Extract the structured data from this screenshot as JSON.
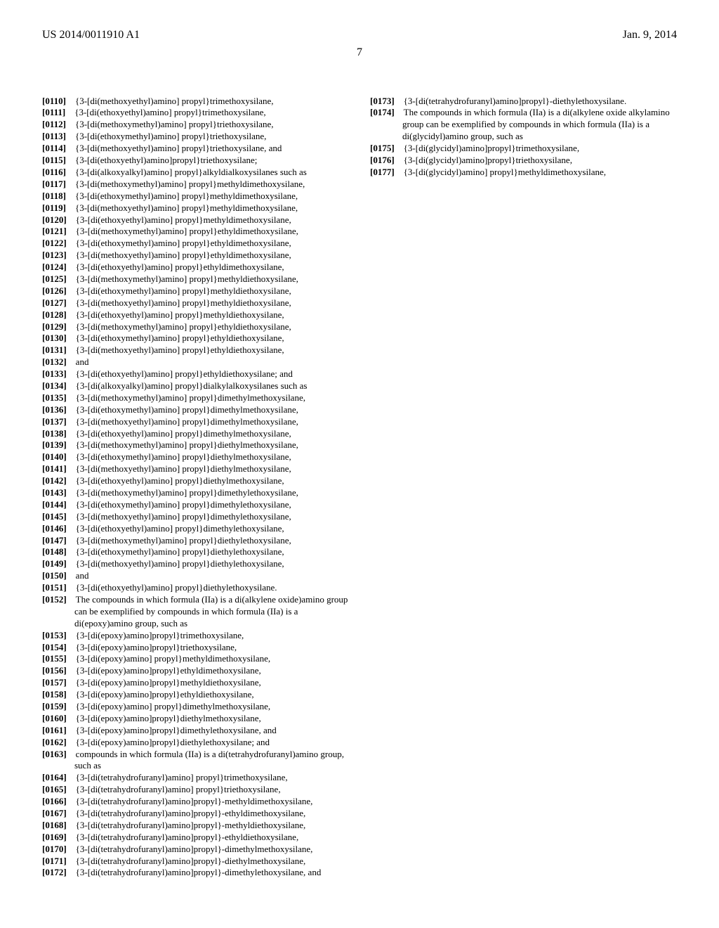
{
  "header": {
    "patent_number": "US 2014/0011910 A1",
    "date": "Jan. 9, 2014",
    "page": "7"
  },
  "entries": [
    {
      "n": "[0110]",
      "t": "{3-[di(methoxyethyl)amino] propyl}trimethoxysilane,"
    },
    {
      "n": "[0111]",
      "t": "{3-[di(ethoxyethyl)amino] propyl}trimethoxysilane,"
    },
    {
      "n": "[0112]",
      "t": "{3-[di(methoxymethyl)amino] propyl}triethoxysilane,"
    },
    {
      "n": "[0113]",
      "t": "{3-[di(ethoxymethyl)amino] propyl}triethoxysilane,"
    },
    {
      "n": "[0114]",
      "t": "{3-[di(methoxyethyl)amino] propyl}triethoxysilane, and"
    },
    {
      "n": "[0115]",
      "t": "{3-[di(ethoxyethyl)amino]propyl}triethoxysilane;"
    },
    {
      "n": "[0116]",
      "t": "{3-[di(alkoxyalkyl)amino] propyl}alkyldialkoxysilanes such as"
    },
    {
      "n": "[0117]",
      "t": "{3-[di(methoxymethyl)amino] propyl}methyldimethoxysilane,"
    },
    {
      "n": "[0118]",
      "t": "{3-[di(ethoxymethyl)amino] propyl}methyldimethoxysilane,"
    },
    {
      "n": "[0119]",
      "t": "{3-[di(methoxyethyl)amino] propyl}methyldimethoxysilane,"
    },
    {
      "n": "[0120]",
      "t": "{3-[di(ethoxyethyl)amino] propyl}methyldimethoxysilane,"
    },
    {
      "n": "[0121]",
      "t": "{3-[di(methoxymethyl)amino] propyl}ethyldimethoxysilane,"
    },
    {
      "n": "[0122]",
      "t": "{3-[di(ethoxymethyl)amino] propyl}ethyldimethoxysilane,"
    },
    {
      "n": "[0123]",
      "t": "{3-[di(methoxyethyl)amino] propyl}ethyldimethoxysilane,"
    },
    {
      "n": "[0124]",
      "t": "{3-[di(ethoxyethyl)amino] propyl}ethyldimethoxysilane,"
    },
    {
      "n": "[0125]",
      "t": "{3-[di(methoxymethyl)amino] propyl}methyldiethoxysilane,"
    },
    {
      "n": "[0126]",
      "t": "{3-[di(ethoxymethyl)amino] propyl}methyldiethoxysilane,"
    },
    {
      "n": "[0127]",
      "t": "{3-[di(methoxyethyl)amino] propyl}methyldiethoxysilane,"
    },
    {
      "n": "[0128]",
      "t": "{3-[di(ethoxyethyl)amino] propyl}methyldiethoxysilane,"
    },
    {
      "n": "[0129]",
      "t": "{3-[di(methoxymethyl)amino] propyl}ethyldiethoxysilane,"
    },
    {
      "n": "[0130]",
      "t": "{3-[di(ethoxymethyl)amino] propyl}ethyldiethoxysilane,"
    },
    {
      "n": "[0131]",
      "t": "{3-[di(methoxyethyl)amino] propyl}ethyldiethoxysilane,"
    },
    {
      "n": "[0132]",
      "t": "and"
    },
    {
      "n": "[0133]",
      "t": "{3-[di(ethoxyethyl)amino] propyl}ethyldiethoxysilane; and"
    },
    {
      "n": "[0134]",
      "t": "{3-[di(alkoxyalkyl)amino] propyl}dialkylalkoxysilanes such as"
    },
    {
      "n": "[0135]",
      "t": "{3-[di(methoxymethyl)amino] propyl}dimethylmethoxysilane,"
    },
    {
      "n": "[0136]",
      "t": "{3-[di(ethoxymethyl)amino] propyl}dimethylmethoxysilane,"
    },
    {
      "n": "[0137]",
      "t": "{3-[di(methoxyethyl)amino] propyl}dimethylmethoxysilane,"
    },
    {
      "n": "[0138]",
      "t": "{3-[di(ethoxyethyl)amino] propyl}dimethylmethoxysilane,"
    },
    {
      "n": "[0139]",
      "t": "{3-[di(methoxymethyl)amino] propyl}diethylmethoxysilane,"
    },
    {
      "n": "[0140]",
      "t": "{3-[di(ethoxymethyl)amino] propyl}diethylmethoxysilane,"
    },
    {
      "n": "[0141]",
      "t": "{3-[di(methoxyethyl)amino] propyl}diethylmethoxysilane,"
    },
    {
      "n": "[0142]",
      "t": "{3-[di(ethoxyethyl)amino] propyl}diethylmethoxysilane,"
    },
    {
      "n": "[0143]",
      "t": "{3-[di(methoxymethyl)amino] propyl}dimethylethoxysilane,"
    },
    {
      "n": "[0144]",
      "t": "{3-[di(ethoxymethyl)amino] propyl}dimethylethoxysilane,"
    },
    {
      "n": "[0145]",
      "t": "{3-[di(methoxyethyl)amino] propyl}dimethylethoxysilane,"
    },
    {
      "n": "[0146]",
      "t": "{3-[di(ethoxyethyl)amino] propyl}dimethylethoxysilane,"
    },
    {
      "n": "[0147]",
      "t": "{3-[di(methoxymethyl)amino] propyl}diethylethoxysilane,"
    },
    {
      "n": "[0148]",
      "t": "{3-[di(ethoxymethyl)amino] propyl}diethylethoxysilane,"
    },
    {
      "n": "[0149]",
      "t": "{3-[di(methoxyethyl)amino] propyl}diethylethoxysilane,"
    },
    {
      "n": "[0150]",
      "t": "and"
    },
    {
      "n": "[0151]",
      "t": "{3-[di(ethoxyethyl)amino] propyl}diethylethoxysilane."
    },
    {
      "n": "[0152]",
      "t": "The compounds in which formula (IIa) is a di(alkylene oxide)amino group can be exemplified by compounds in which formula (IIa) is a di(epoxy)amino group, such as"
    },
    {
      "n": "[0153]",
      "t": "{3-[di(epoxy)amino]propyl}trimethoxysilane,"
    },
    {
      "n": "[0154]",
      "t": "{3-[di(epoxy)amino]propyl}triethoxysilane,"
    },
    {
      "n": "[0155]",
      "t": "{3-[di(epoxy)amino] propyl}methyldimethoxysilane,"
    },
    {
      "n": "[0156]",
      "t": "{3-[di(epoxy)amino]propyl}ethyldimethoxysilane,"
    },
    {
      "n": "[0157]",
      "t": "{3-[di(epoxy)amino]propyl}methyldiethoxysilane,"
    },
    {
      "n": "[0158]",
      "t": "{3-[di(epoxy)amino]propyl}ethyldiethoxysilane,"
    },
    {
      "n": "[0159]",
      "t": "{3-[di(epoxy)amino] propyl}dimethylmethoxysilane,"
    },
    {
      "n": "[0160]",
      "t": "{3-[di(epoxy)amino]propyl}diethylmethoxysilane,"
    },
    {
      "n": "[0161]",
      "t": "{3-[di(epoxy)amino]propyl}dimethylethoxysilane, and"
    },
    {
      "n": "[0162]",
      "t": "{3-[di(epoxy)amino]propyl}diethylethoxysilane; and"
    },
    {
      "n": "[0163]",
      "t": "compounds in which formula (IIa) is a di(tetrahydrofuranyl)amino group, such as"
    },
    {
      "n": "[0164]",
      "t": "{3-[di(tetrahydrofuranyl)amino] propyl}trimethoxysilane,"
    },
    {
      "n": "[0165]",
      "t": "{3-[di(tetrahydrofuranyl)amino] propyl}triethoxysilane,"
    },
    {
      "n": "[0166]",
      "t": "{3-[di(tetrahydrofuranyl)amino]propyl}-methyldimethoxysilane,"
    },
    {
      "n": "[0167]",
      "t": "{3-[di(tetrahydrofuranyl)amino]propyl}-ethyldimethoxysilane,"
    },
    {
      "n": "[0168]",
      "t": "{3-[di(tetrahydrofuranyl)amino]propyl}-methyldiethoxysilane,"
    },
    {
      "n": "[0169]",
      "t": "{3-[di(tetrahydrofuranyl)amino]propyl}-ethyldiethoxysilane,"
    },
    {
      "n": "[0170]",
      "t": "{3-[di(tetrahydrofuranyl)amino]propyl}-dimethylmethoxysilane,"
    },
    {
      "n": "[0171]",
      "t": "{3-[di(tetrahydrofuranyl)amino]propyl}-diethylmethoxysilane,"
    },
    {
      "n": "[0172]",
      "t": "{3-[di(tetrahydrofuranyl)amino]propyl}-dimethylethoxysilane, and"
    },
    {
      "n": "[0173]",
      "t": "{3-[di(tetrahydrofuranyl)amino]propyl}-diethylethoxysilane."
    },
    {
      "n": "[0174]",
      "t": "The compounds in which formula (IIa) is a di(alkylene oxide alkylamino group can be exemplified by compounds in which formula (IIa) is a di(glycidyl)amino group, such as"
    },
    {
      "n": "[0175]",
      "t": "{3-[di(glycidyl)amino]propyl}trimethoxysilane,"
    },
    {
      "n": "[0176]",
      "t": "{3-[di(glycidyl)amino]propyl}triethoxysilane,"
    },
    {
      "n": "[0177]",
      "t": "{3-[di(glycidyl)amino] propyl}methyldimethoxysilane,"
    }
  ]
}
